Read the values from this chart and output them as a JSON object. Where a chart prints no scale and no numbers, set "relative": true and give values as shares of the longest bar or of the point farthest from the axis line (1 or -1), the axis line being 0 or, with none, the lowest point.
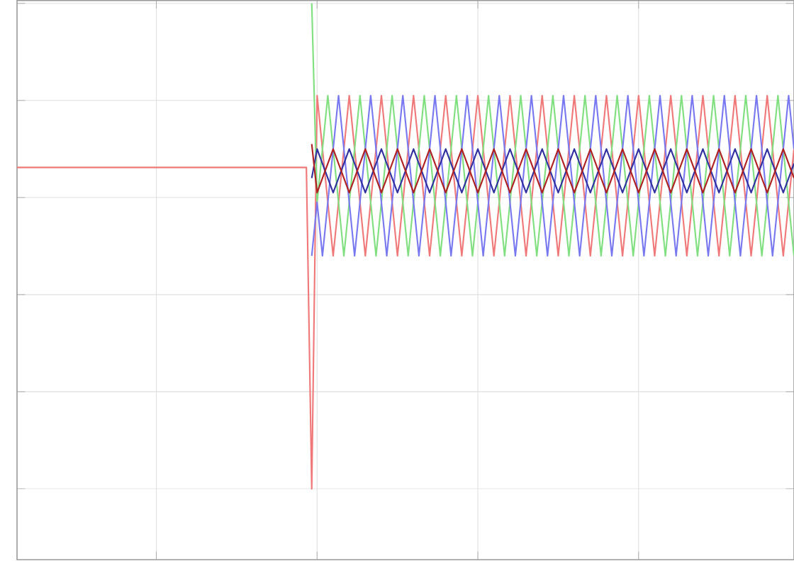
{
  "chart_data": {
    "type": "line",
    "relative": true,
    "grid": true,
    "marker": "none",
    "line_style": "solid",
    "categories": [
      null,
      null,
      null,
      null,
      null,
      null,
      null,
      null,
      null,
      null,
      null,
      null,
      null,
      null,
      null,
      null,
      null,
      null,
      null,
      null,
      null,
      null,
      null,
      null,
      null,
      null,
      null,
      null,
      null,
      null,
      null,
      null,
      null,
      null,
      null,
      null,
      null,
      null,
      null,
      null,
      null,
      null,
      null,
      null,
      null,
      null,
      null,
      null,
      null,
      null,
      null,
      null,
      null,
      null,
      null,
      null,
      null,
      null,
      null,
      null,
      null,
      null,
      null,
      null,
      null,
      null,
      null,
      null,
      null,
      null,
      null,
      null,
      null,
      null,
      null,
      null,
      null,
      null,
      null,
      null,
      null,
      null,
      null,
      null,
      null,
      null,
      null,
      null,
      null,
      null,
      null,
      null,
      null,
      null,
      null,
      null,
      null,
      null,
      null,
      null,
      null,
      null,
      null,
      null,
      null,
      null,
      null,
      null,
      null,
      null,
      null,
      null,
      null,
      null,
      null,
      null,
      null,
      null,
      null,
      null,
      null,
      null,
      null,
      null,
      null,
      null,
      null,
      null,
      null,
      null,
      null,
      null,
      null,
      null,
      null,
      null,
      null,
      null,
      null,
      null,
      null,
      null,
      null,
      null,
      null,
      null
    ],
    "series": [
      {
        "color": "#f07878",
        "values": [
          0.662,
          0.662,
          0.662,
          0.662,
          0.662,
          0.662,
          0.662,
          0.662,
          0.662,
          0.662,
          0.662,
          0.662,
          0.662,
          0.662,
          0.662,
          0.662,
          0.662,
          0.662,
          0.662,
          0.662,
          0.662,
          0.662,
          0.662,
          0.662,
          0.662,
          0.662,
          0.662,
          0.662,
          0.662,
          0.662,
          0.662,
          0.662,
          0.662,
          0.662,
          0.662,
          0.662,
          0.662,
          0.662,
          0.662,
          0.662,
          0.662,
          0.662,
          0.662,
          0.662,
          0.662,
          0.662,
          0.662,
          0.662,
          0.662,
          0.662,
          0.662,
          0.662,
          0.662,
          0.662,
          0.662,
          0.0,
          0.81,
          0.7,
          0.59,
          0.48,
          0.59,
          0.7,
          0.81,
          0.7,
          0.59,
          0.48,
          0.59,
          0.7,
          0.81,
          0.7,
          0.59,
          0.48,
          0.59,
          0.7,
          0.81,
          0.7,
          0.59,
          0.48,
          0.59,
          0.7,
          0.81,
          0.7,
          0.59,
          0.48,
          0.59,
          0.7,
          0.81,
          0.7,
          0.59,
          0.48,
          0.59,
          0.7,
          0.81,
          0.7,
          0.59,
          0.48,
          0.59,
          0.7,
          0.81,
          0.7,
          0.59,
          0.48,
          0.59,
          0.7,
          0.81,
          0.7,
          0.59,
          0.48,
          0.59,
          0.7,
          0.81,
          0.7,
          0.59,
          0.48,
          0.59,
          0.7,
          0.81,
          0.7,
          0.59,
          0.48,
          0.59,
          0.7,
          0.81,
          0.7,
          0.59,
          0.48,
          0.59,
          0.7,
          0.81,
          0.7,
          0.59,
          0.48,
          0.59,
          0.7,
          0.81,
          0.7,
          0.59,
          0.48,
          0.59,
          0.7,
          0.81,
          0.7,
          0.59,
          0.48,
          0.59,
          0.7
        ]
      },
      {
        "color": "#80e080",
        "values": [
          null,
          null,
          null,
          null,
          null,
          null,
          null,
          null,
          null,
          null,
          null,
          null,
          null,
          null,
          null,
          null,
          null,
          null,
          null,
          null,
          null,
          null,
          null,
          null,
          null,
          null,
          null,
          null,
          null,
          null,
          null,
          null,
          null,
          null,
          null,
          null,
          null,
          null,
          null,
          null,
          null,
          null,
          null,
          null,
          null,
          null,
          null,
          null,
          null,
          null,
          null,
          null,
          null,
          null,
          null,
          1.0,
          0.59,
          0.7,
          0.81,
          0.7,
          0.59,
          0.48,
          0.59,
          0.7,
          0.81,
          0.7,
          0.59,
          0.48,
          0.59,
          0.7,
          0.81,
          0.7,
          0.59,
          0.48,
          0.59,
          0.7,
          0.81,
          0.7,
          0.59,
          0.48,
          0.59,
          0.7,
          0.81,
          0.7,
          0.59,
          0.48,
          0.59,
          0.7,
          0.81,
          0.7,
          0.59,
          0.48,
          0.59,
          0.7,
          0.81,
          0.7,
          0.59,
          0.48,
          0.59,
          0.7,
          0.81,
          0.7,
          0.59,
          0.48,
          0.59,
          0.7,
          0.81,
          0.7,
          0.59,
          0.48,
          0.59,
          0.7,
          0.81,
          0.7,
          0.59,
          0.48,
          0.59,
          0.7,
          0.81,
          0.7,
          0.59,
          0.48,
          0.59,
          0.7,
          0.81,
          0.7,
          0.59,
          0.48,
          0.59,
          0.7,
          0.81,
          0.7,
          0.59,
          0.48,
          0.59,
          0.7,
          0.81,
          0.7,
          0.59,
          0.48,
          0.59,
          0.7,
          0.81,
          0.7,
          0.59,
          0.48
        ]
      },
      {
        "color": "#7878f0",
        "values": [
          null,
          null,
          null,
          null,
          null,
          null,
          null,
          null,
          null,
          null,
          null,
          null,
          null,
          null,
          null,
          null,
          null,
          null,
          null,
          null,
          null,
          null,
          null,
          null,
          null,
          null,
          null,
          null,
          null,
          null,
          null,
          null,
          null,
          null,
          null,
          null,
          null,
          null,
          null,
          null,
          null,
          null,
          null,
          null,
          null,
          null,
          null,
          null,
          null,
          null,
          null,
          null,
          null,
          null,
          null,
          0.48,
          0.59,
          0.48,
          0.59,
          0.7,
          0.81,
          0.7,
          0.59,
          0.48,
          0.59,
          0.7,
          0.81,
          0.7,
          0.59,
          0.48,
          0.59,
          0.7,
          0.81,
          0.7,
          0.59,
          0.48,
          0.59,
          0.7,
          0.81,
          0.7,
          0.59,
          0.48,
          0.59,
          0.7,
          0.81,
          0.7,
          0.59,
          0.48,
          0.59,
          0.7,
          0.81,
          0.7,
          0.59,
          0.48,
          0.59,
          0.7,
          0.81,
          0.7,
          0.59,
          0.48,
          0.59,
          0.7,
          0.81,
          0.7,
          0.59,
          0.48,
          0.59,
          0.7,
          0.81,
          0.7,
          0.59,
          0.48,
          0.59,
          0.7,
          0.81,
          0.7,
          0.59,
          0.48,
          0.59,
          0.7,
          0.81,
          0.7,
          0.59,
          0.48,
          0.59,
          0.7,
          0.81,
          0.7,
          0.59,
          0.48,
          0.59,
          0.7,
          0.81,
          0.7,
          0.59,
          0.48,
          0.59,
          0.7,
          0.81,
          0.7,
          0.59,
          0.48,
          0.59,
          0.7,
          0.81,
          0.7
        ]
      },
      {
        "color": "#3030a0",
        "values": [
          null,
          null,
          null,
          null,
          null,
          null,
          null,
          null,
          null,
          null,
          null,
          null,
          null,
          null,
          null,
          null,
          null,
          null,
          null,
          null,
          null,
          null,
          null,
          null,
          null,
          null,
          null,
          null,
          null,
          null,
          null,
          null,
          null,
          null,
          null,
          null,
          null,
          null,
          null,
          null,
          null,
          null,
          null,
          null,
          null,
          null,
          null,
          null,
          null,
          null,
          null,
          null,
          null,
          null,
          null,
          0.64,
          0.7,
          0.67,
          0.64,
          0.61,
          0.64,
          0.67,
          0.7,
          0.67,
          0.64,
          0.61,
          0.64,
          0.67,
          0.7,
          0.67,
          0.64,
          0.61,
          0.64,
          0.67,
          0.7,
          0.67,
          0.64,
          0.61,
          0.64,
          0.67,
          0.7,
          0.67,
          0.64,
          0.61,
          0.64,
          0.67,
          0.7,
          0.67,
          0.64,
          0.61,
          0.64,
          0.67,
          0.7,
          0.67,
          0.64,
          0.61,
          0.64,
          0.67,
          0.7,
          0.67,
          0.64,
          0.61,
          0.64,
          0.67,
          0.7,
          0.67,
          0.64,
          0.61,
          0.64,
          0.67,
          0.7,
          0.67,
          0.64,
          0.61,
          0.64,
          0.67,
          0.7,
          0.67,
          0.64,
          0.61,
          0.64,
          0.67,
          0.7,
          0.67,
          0.64,
          0.61,
          0.64,
          0.67,
          0.7,
          0.67,
          0.64,
          0.61,
          0.64,
          0.67,
          0.7,
          0.67,
          0.64,
          0.61,
          0.64,
          0.67,
          0.7,
          0.67,
          0.64,
          0.61,
          0.64,
          0.67
        ]
      },
      {
        "color": "#b02020",
        "values": [
          null,
          null,
          null,
          null,
          null,
          null,
          null,
          null,
          null,
          null,
          null,
          null,
          null,
          null,
          null,
          null,
          null,
          null,
          null,
          null,
          null,
          null,
          null,
          null,
          null,
          null,
          null,
          null,
          null,
          null,
          null,
          null,
          null,
          null,
          null,
          null,
          null,
          null,
          null,
          null,
          null,
          null,
          null,
          null,
          null,
          null,
          null,
          null,
          null,
          null,
          null,
          null,
          null,
          null,
          null,
          0.71,
          0.61,
          0.64,
          0.67,
          0.7,
          0.67,
          0.64,
          0.61,
          0.64,
          0.67,
          0.7,
          0.67,
          0.64,
          0.61,
          0.64,
          0.67,
          0.7,
          0.67,
          0.64,
          0.61,
          0.64,
          0.67,
          0.7,
          0.67,
          0.64,
          0.61,
          0.64,
          0.67,
          0.7,
          0.67,
          0.64,
          0.61,
          0.64,
          0.67,
          0.7,
          0.67,
          0.64,
          0.61,
          0.64,
          0.67,
          0.7,
          0.67,
          0.64,
          0.61,
          0.64,
          0.67,
          0.7,
          0.67,
          0.64,
          0.61,
          0.64,
          0.67,
          0.7,
          0.67,
          0.64,
          0.61,
          0.64,
          0.67,
          0.7,
          0.67,
          0.64,
          0.61,
          0.64,
          0.67,
          0.7,
          0.67,
          0.64,
          0.61,
          0.64,
          0.67,
          0.7,
          0.67,
          0.64,
          0.61,
          0.64,
          0.67,
          0.7,
          0.67,
          0.64,
          0.61,
          0.64,
          0.67,
          0.7,
          0.67,
          0.64,
          0.61,
          0.64,
          0.67,
          0.7,
          0.67,
          0.64
        ]
      }
    ]
  }
}
